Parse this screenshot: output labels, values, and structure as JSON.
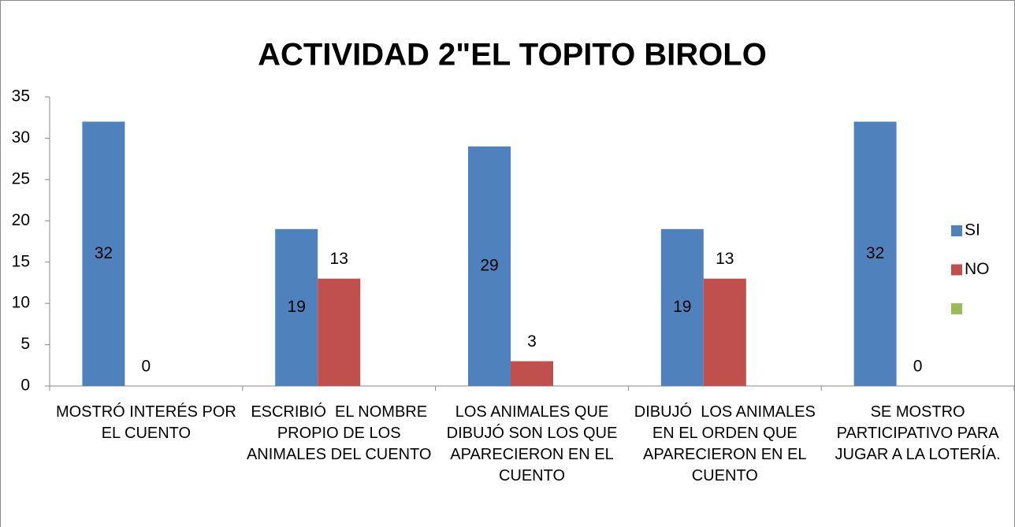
{
  "chart_data": {
    "type": "bar",
    "title": "ACTIVIDAD 2\"EL TOPITO BIROLO",
    "categories": [
      "MOSTRÓ INTERÉS POR EL CUENTO",
      "ESCRIBIÓ  EL NOMBRE PROPIO DE LOS ANIMALES DEL CUENTO",
      "LOS ANIMALES QUE DIBUJÓ SON LOS QUE APARECIERON EN EL CUENTO",
      "DIBUJÓ  LOS ANIMALES EN EL ORDEN QUE APARECIERON EN EL CUENTO",
      "SE MOSTRO PARTICIPATIVO PARA JUGAR A LA LOTERÍA."
    ],
    "series": [
      {
        "name": "SI",
        "color": "#4f81bd",
        "values": [
          32,
          19,
          29,
          19,
          32
        ]
      },
      {
        "name": "NO",
        "color": "#c0504d",
        "values": [
          0,
          13,
          3,
          13,
          0
        ]
      },
      {
        "name": null,
        "color": "#9bbb59",
        "values": [
          null,
          null,
          null,
          null,
          null
        ]
      }
    ],
    "ylim": [
      0,
      35
    ],
    "yticks": [
      0,
      5,
      10,
      15,
      20,
      25,
      30,
      35
    ],
    "legend": "right"
  }
}
